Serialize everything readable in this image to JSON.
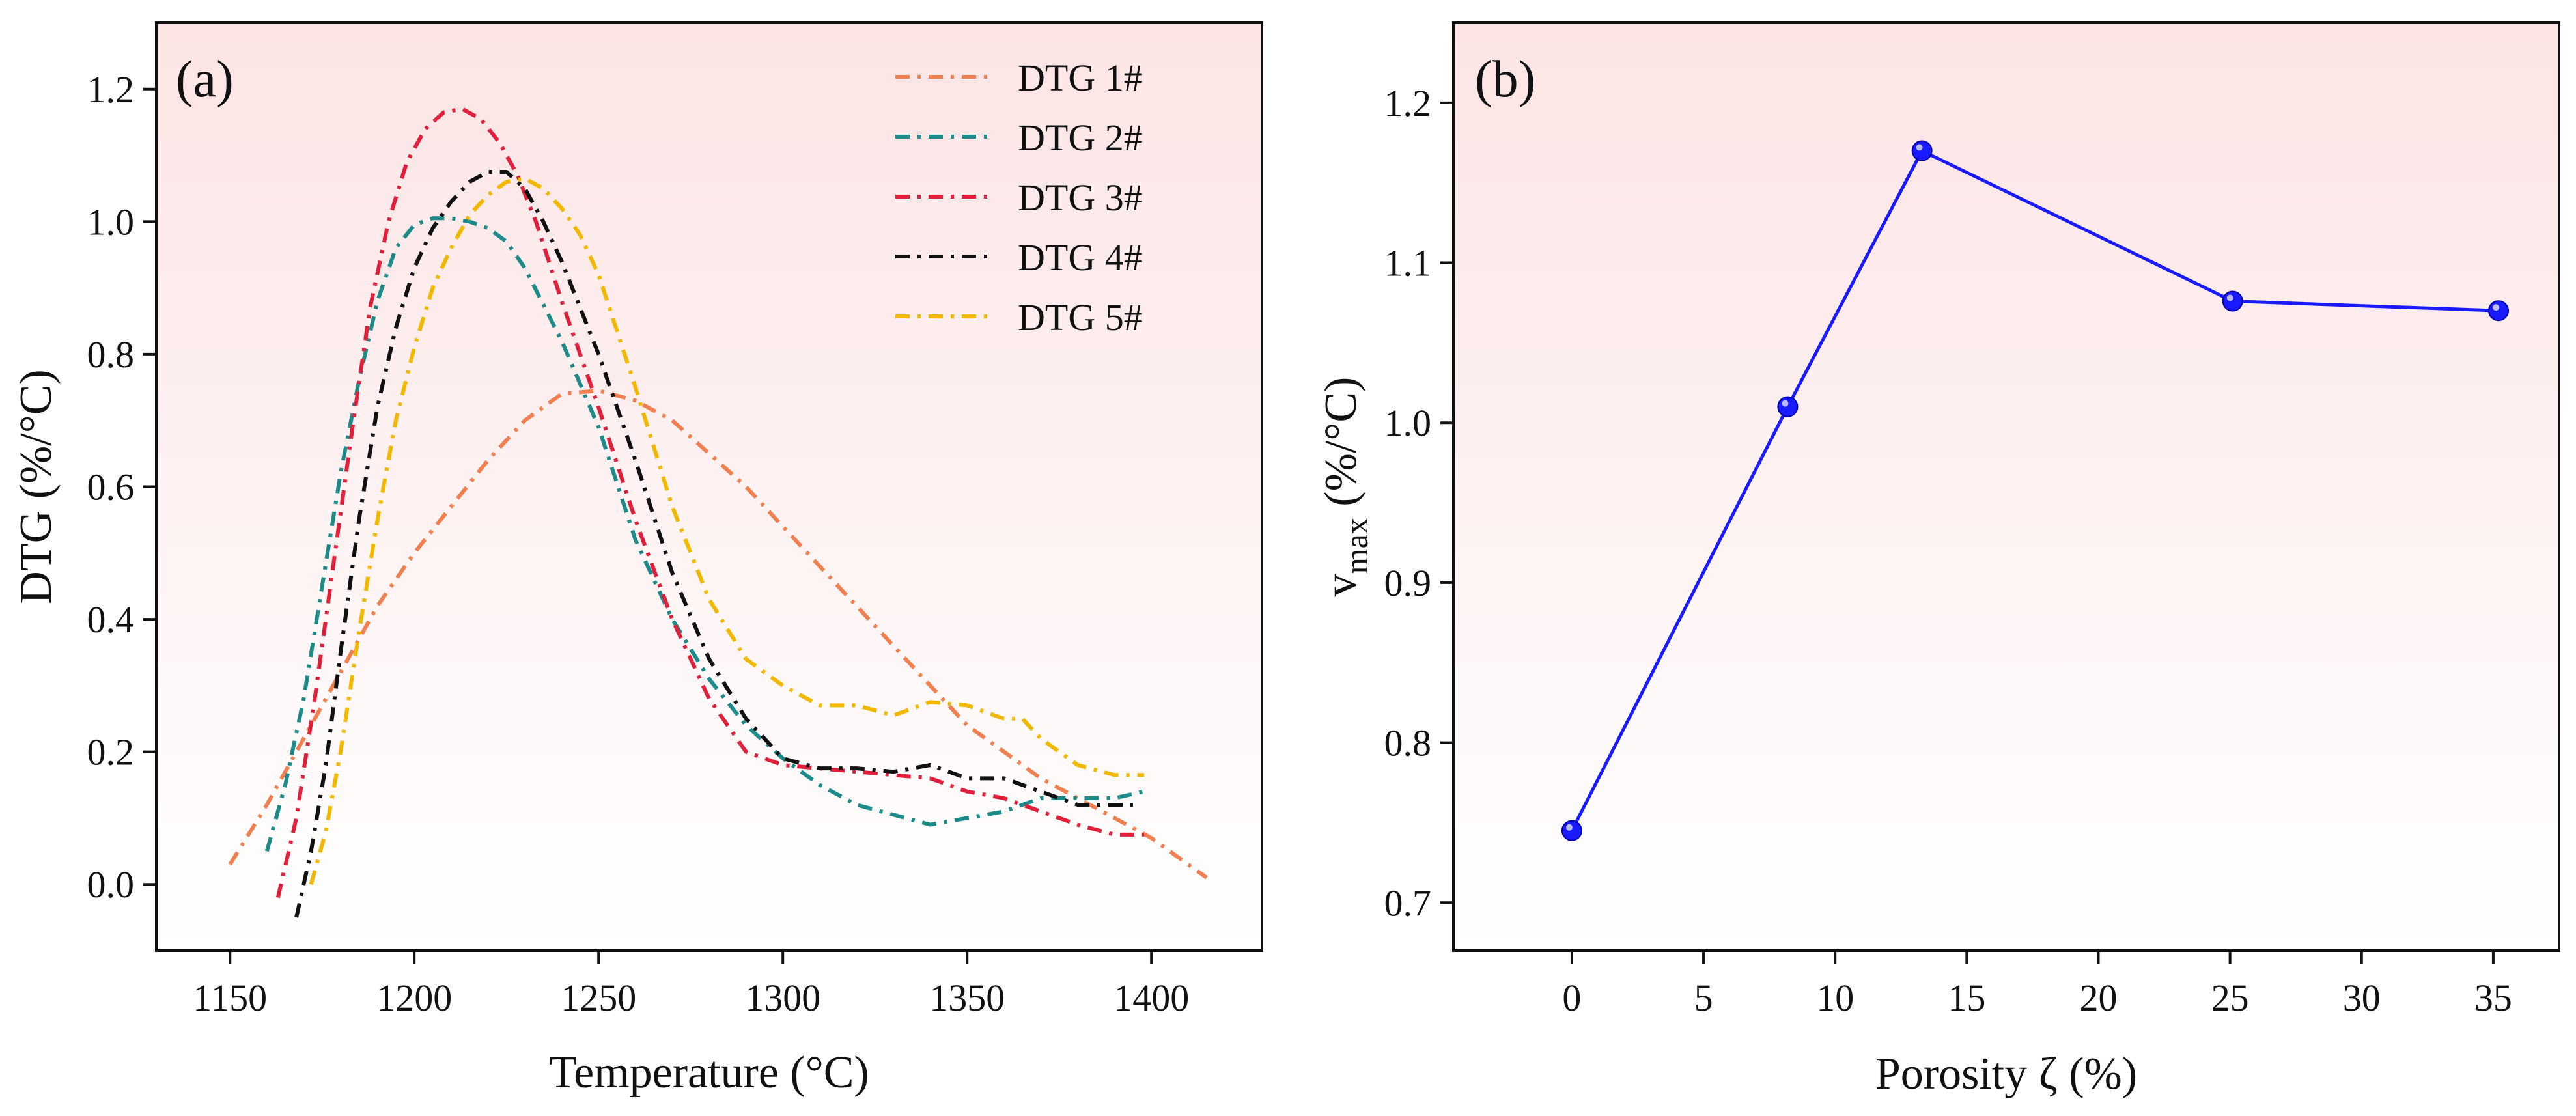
{
  "chart_data": [
    {
      "panel": "(a)",
      "type": "line",
      "xlabel": "Temperature (°C)",
      "ylabel": "DTG (%/°C)",
      "xlim": [
        1130,
        1430
      ],
      "ylim": [
        -0.1,
        1.3
      ],
      "xticks": [
        "1150",
        "1200",
        "1250",
        "1300",
        "1350",
        "1400"
      ],
      "xtick_values": [
        1150,
        1200,
        1250,
        1300,
        1350,
        1400
      ],
      "yticks": [
        "0.0",
        "0.2",
        "0.4",
        "0.6",
        "0.8",
        "1.0",
        "1.2"
      ],
      "ytick_values": [
        0.0,
        0.2,
        0.4,
        0.6,
        0.8,
        1.0,
        1.2
      ],
      "background": {
        "top": "#fce4e4",
        "bottom": "#ffffff"
      },
      "legend_position": "top-right",
      "series": [
        {
          "name": "DTG 1#",
          "color": "#f08050",
          "x": [
            1150,
            1160,
            1170,
            1180,
            1190,
            1200,
            1210,
            1220,
            1230,
            1240,
            1250,
            1260,
            1270,
            1280,
            1290,
            1300,
            1310,
            1320,
            1330,
            1340,
            1350,
            1360,
            1370,
            1380,
            1390,
            1400,
            1410,
            1415
          ],
          "y": [
            0.03,
            0.12,
            0.22,
            0.32,
            0.42,
            0.5,
            0.57,
            0.64,
            0.7,
            0.74,
            0.745,
            0.73,
            0.7,
            0.65,
            0.6,
            0.54,
            0.48,
            0.42,
            0.36,
            0.3,
            0.24,
            0.2,
            0.16,
            0.13,
            0.1,
            0.07,
            0.03,
            0.01
          ]
        },
        {
          "name": "DTG 2#",
          "color": "#1e8b8b",
          "x": [
            1160,
            1165,
            1170,
            1175,
            1180,
            1185,
            1190,
            1195,
            1200,
            1205,
            1210,
            1215,
            1220,
            1225,
            1230,
            1240,
            1250,
            1260,
            1270,
            1280,
            1290,
            1300,
            1310,
            1320,
            1330,
            1340,
            1350,
            1360,
            1370,
            1380,
            1390,
            1398
          ],
          "y": [
            0.05,
            0.15,
            0.28,
            0.45,
            0.62,
            0.76,
            0.88,
            0.96,
            0.995,
            1.005,
            1.005,
            1.0,
            0.99,
            0.97,
            0.93,
            0.82,
            0.69,
            0.52,
            0.4,
            0.31,
            0.24,
            0.19,
            0.15,
            0.12,
            0.105,
            0.09,
            0.1,
            0.11,
            0.13,
            0.13,
            0.13,
            0.14
          ]
        },
        {
          "name": "DTG 3#",
          "color": "#e0203a",
          "x": [
            1163,
            1168,
            1173,
            1178,
            1183,
            1188,
            1193,
            1198,
            1203,
            1208,
            1213,
            1218,
            1223,
            1228,
            1233,
            1240,
            1250,
            1260,
            1270,
            1280,
            1290,
            1300,
            1310,
            1320,
            1330,
            1340,
            1350,
            1360,
            1370,
            1380,
            1390,
            1398
          ],
          "y": [
            -0.02,
            0.1,
            0.28,
            0.48,
            0.68,
            0.87,
            1.0,
            1.09,
            1.14,
            1.165,
            1.17,
            1.155,
            1.12,
            1.07,
            1.0,
            0.88,
            0.72,
            0.55,
            0.4,
            0.28,
            0.2,
            0.18,
            0.175,
            0.17,
            0.165,
            0.16,
            0.14,
            0.13,
            0.11,
            0.09,
            0.075,
            0.075
          ]
        },
        {
          "name": "DTG 4#",
          "color": "#111111",
          "x": [
            1168,
            1172,
            1176,
            1180,
            1185,
            1190,
            1195,
            1200,
            1205,
            1210,
            1215,
            1220,
            1225,
            1230,
            1235,
            1240,
            1250,
            1260,
            1270,
            1280,
            1290,
            1300,
            1310,
            1320,
            1330,
            1340,
            1350,
            1360,
            1370,
            1380,
            1390,
            1395
          ],
          "y": [
            -0.05,
            0.05,
            0.18,
            0.35,
            0.55,
            0.72,
            0.84,
            0.93,
            0.99,
            1.03,
            1.06,
            1.075,
            1.075,
            1.05,
            1.0,
            0.94,
            0.8,
            0.64,
            0.47,
            0.34,
            0.25,
            0.19,
            0.175,
            0.175,
            0.17,
            0.18,
            0.16,
            0.16,
            0.14,
            0.12,
            0.12,
            0.12
          ]
        },
        {
          "name": "DTG 5#",
          "color": "#f2b800",
          "x": [
            1172,
            1176,
            1180,
            1185,
            1190,
            1195,
            1200,
            1205,
            1210,
            1215,
            1220,
            1225,
            1230,
            1235,
            1240,
            1245,
            1250,
            1260,
            1270,
            1280,
            1290,
            1300,
            1310,
            1320,
            1330,
            1340,
            1350,
            1360,
            1365,
            1370,
            1380,
            1390,
            1398
          ],
          "y": [
            0.0,
            0.08,
            0.2,
            0.38,
            0.55,
            0.7,
            0.81,
            0.9,
            0.96,
            1.01,
            1.04,
            1.06,
            1.065,
            1.05,
            1.02,
            0.98,
            0.92,
            0.75,
            0.57,
            0.43,
            0.34,
            0.3,
            0.27,
            0.27,
            0.255,
            0.275,
            0.27,
            0.25,
            0.25,
            0.22,
            0.18,
            0.165,
            0.165
          ]
        }
      ]
    },
    {
      "panel": "(b)",
      "type": "line",
      "xlabel": "Porosity ζ (%)",
      "ylabel_main": "v",
      "ylabel_sub": "max",
      "ylabel_unit": " (%/°C)",
      "xlim": [
        -4.5,
        37.5
      ],
      "ylim": [
        0.67,
        1.25
      ],
      "xticks": [
        "0",
        "5",
        "10",
        "15",
        "20",
        "25",
        "30",
        "35"
      ],
      "xtick_values": [
        0,
        5,
        10,
        15,
        20,
        25,
        30,
        35
      ],
      "yticks": [
        "0.7",
        "0.8",
        "0.9",
        "1.0",
        "1.1",
        "1.2"
      ],
      "ytick_values": [
        0.7,
        0.8,
        0.9,
        1.0,
        1.1,
        1.2
      ],
      "background": {
        "top": "#fce4e4",
        "bottom": "#ffffff"
      },
      "series": [
        {
          "name": "v_max",
          "color": "#1a1aff",
          "x": [
            0,
            8.2,
            13.3,
            25.1,
            35.2
          ],
          "y": [
            0.745,
            1.01,
            1.17,
            1.076,
            1.07
          ]
        }
      ]
    }
  ]
}
